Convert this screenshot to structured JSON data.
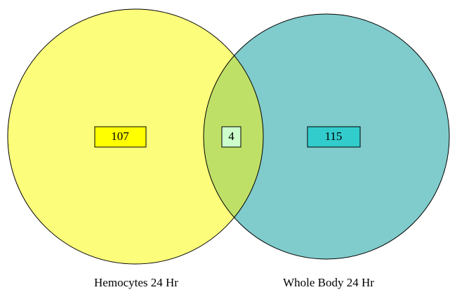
{
  "sets": [
    {
      "label": "Hemocytes 24 Hr",
      "count": "107",
      "color": "#fdfd7c",
      "box_color": "#ffff00"
    },
    {
      "label": "Whole Body 24 Hr",
      "count": "115",
      "color": "#80cbcb",
      "box_color": "#33cccc"
    }
  ],
  "intersection": {
    "count": "4",
    "color": "#bfe067",
    "box_color": "#ccffcc"
  }
}
